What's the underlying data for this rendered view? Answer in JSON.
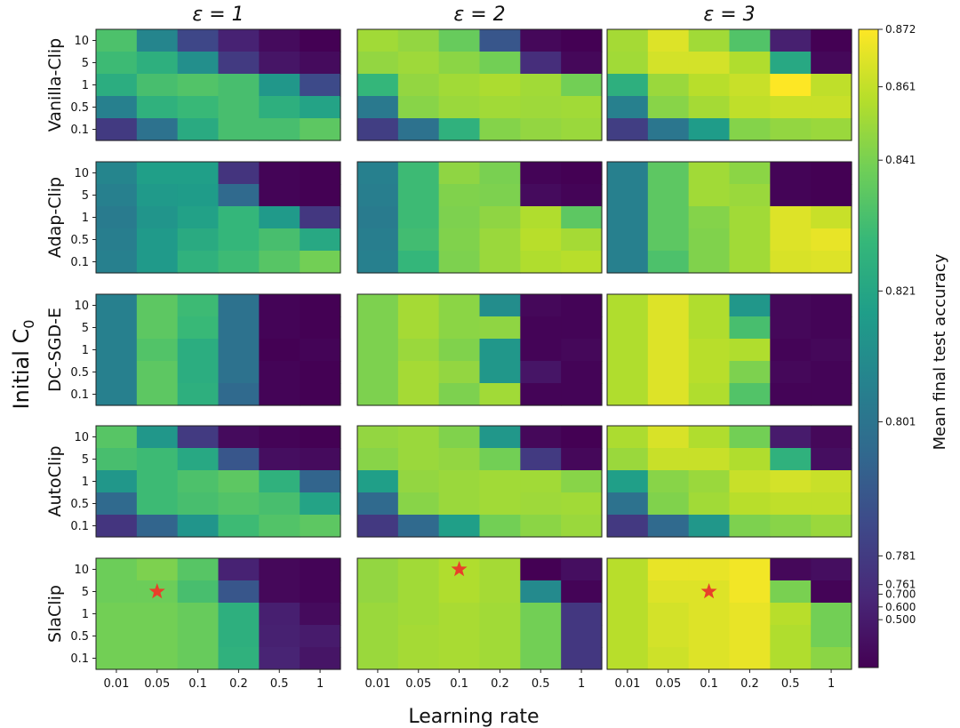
{
  "chart_data": {
    "type": "heatmap",
    "title": "",
    "xlabel": "Learning rate",
    "ylabel": "Initial C",
    "ylabel_subscript": "0",
    "colorbar_label": "Mean final test accuracy",
    "colormap": "viridis",
    "colorbar_ticks": [
      "0.872",
      "0.861",
      "0.841",
      "0.821",
      "0.801",
      "0.781",
      "0.761",
      "0.700",
      "0.600",
      "0.500"
    ],
    "column_titles": [
      "ε = 1",
      "ε = 2",
      "ε = 3"
    ],
    "row_titles": [
      "Vanilla-Clip",
      "Adap-Clip",
      "DC-SGD-E",
      "AutoClip",
      "SlaClip"
    ],
    "x_categories": [
      "0.01",
      "0.05",
      "0.1",
      "0.2",
      "0.5",
      "1"
    ],
    "y_categories": [
      "10",
      "5",
      "1",
      "0.5",
      "0.1"
    ],
    "best_marker_color": "#e8402a",
    "panels": [
      {
        "method": "Vanilla-Clip",
        "epsilon": 1,
        "values": [
          [
            0.833,
            0.808,
            0.785,
            0.6,
            0.45,
            0.42
          ],
          [
            0.83,
            0.825,
            0.812,
            0.78,
            0.48,
            0.45
          ],
          [
            0.824,
            0.832,
            0.834,
            0.832,
            0.815,
            0.786
          ],
          [
            0.806,
            0.826,
            0.829,
            0.832,
            0.825,
            0.82
          ],
          [
            0.78,
            0.8,
            0.823,
            0.832,
            0.832,
            0.836
          ]
        ]
      },
      {
        "method": "Adap-Clip",
        "epsilon": 1,
        "values": [
          [
            0.808,
            0.818,
            0.818,
            0.77,
            0.43,
            0.42
          ],
          [
            0.806,
            0.816,
            0.817,
            0.797,
            0.43,
            0.42
          ],
          [
            0.804,
            0.814,
            0.819,
            0.828,
            0.816,
            0.775
          ],
          [
            0.805,
            0.816,
            0.823,
            0.828,
            0.832,
            0.822
          ],
          [
            0.806,
            0.816,
            0.826,
            0.83,
            0.835,
            0.84
          ]
        ]
      },
      {
        "method": "DC-SGD-E",
        "epsilon": 1,
        "values": [
          [
            0.806,
            0.836,
            0.83,
            0.8,
            0.43,
            0.42
          ],
          [
            0.806,
            0.836,
            0.829,
            0.8,
            0.43,
            0.42
          ],
          [
            0.806,
            0.834,
            0.824,
            0.8,
            0.42,
            0.43
          ],
          [
            0.806,
            0.836,
            0.824,
            0.8,
            0.43,
            0.42
          ],
          [
            0.806,
            0.836,
            0.825,
            0.797,
            0.43,
            0.42
          ]
        ]
      },
      {
        "method": "AutoClip",
        "epsilon": 1,
        "values": [
          [
            0.835,
            0.815,
            0.78,
            0.45,
            0.43,
            0.42
          ],
          [
            0.832,
            0.83,
            0.822,
            0.79,
            0.46,
            0.45
          ],
          [
            0.815,
            0.83,
            0.833,
            0.836,
            0.826,
            0.795
          ],
          [
            0.797,
            0.83,
            0.832,
            0.834,
            0.832,
            0.82
          ],
          [
            0.772,
            0.795,
            0.814,
            0.83,
            0.834,
            0.836
          ]
        ]
      },
      {
        "method": "SlaClip",
        "epsilon": 1,
        "best": [
          1,
          1
        ],
        "values": [
          [
            0.839,
            0.842,
            0.835,
            0.6,
            0.44,
            0.43
          ],
          [
            0.839,
            0.839,
            0.832,
            0.79,
            0.44,
            0.43
          ],
          [
            0.84,
            0.84,
            0.838,
            0.825,
            0.55,
            0.45
          ],
          [
            0.84,
            0.84,
            0.838,
            0.825,
            0.58,
            0.5
          ],
          [
            0.84,
            0.84,
            0.838,
            0.826,
            0.62,
            0.48
          ]
        ]
      },
      {
        "method": "Vanilla-Clip",
        "epsilon": 2,
        "values": [
          [
            0.852,
            0.848,
            0.838,
            0.79,
            0.44,
            0.42
          ],
          [
            0.848,
            0.851,
            0.846,
            0.84,
            0.76,
            0.44
          ],
          [
            0.828,
            0.848,
            0.852,
            0.855,
            0.852,
            0.84
          ],
          [
            0.803,
            0.845,
            0.85,
            0.852,
            0.851,
            0.852
          ],
          [
            0.782,
            0.8,
            0.826,
            0.844,
            0.848,
            0.85
          ]
        ]
      },
      {
        "method": "Adap-Clip",
        "epsilon": 2,
        "values": [
          [
            0.806,
            0.83,
            0.847,
            0.841,
            0.43,
            0.42
          ],
          [
            0.805,
            0.83,
            0.843,
            0.842,
            0.45,
            0.43
          ],
          [
            0.804,
            0.83,
            0.842,
            0.847,
            0.856,
            0.836
          ],
          [
            0.805,
            0.831,
            0.843,
            0.85,
            0.858,
            0.853
          ],
          [
            0.806,
            0.828,
            0.842,
            0.85,
            0.856,
            0.858
          ]
        ]
      },
      {
        "method": "DC-SGD-E",
        "epsilon": 2,
        "values": [
          [
            0.842,
            0.853,
            0.846,
            0.811,
            0.44,
            0.43
          ],
          [
            0.842,
            0.853,
            0.846,
            0.847,
            0.43,
            0.43
          ],
          [
            0.842,
            0.85,
            0.843,
            0.815,
            0.43,
            0.44
          ],
          [
            0.842,
            0.853,
            0.848,
            0.815,
            0.48,
            0.43
          ],
          [
            0.842,
            0.853,
            0.842,
            0.852,
            0.43,
            0.43
          ]
        ]
      },
      {
        "method": "AutoClip",
        "epsilon": 2,
        "values": [
          [
            0.848,
            0.85,
            0.843,
            0.815,
            0.44,
            0.42
          ],
          [
            0.845,
            0.85,
            0.848,
            0.84,
            0.78,
            0.44
          ],
          [
            0.818,
            0.848,
            0.85,
            0.852,
            0.852,
            0.845
          ],
          [
            0.797,
            0.845,
            0.85,
            0.852,
            0.851,
            0.852
          ],
          [
            0.778,
            0.797,
            0.818,
            0.84,
            0.846,
            0.85
          ]
        ]
      },
      {
        "method": "SlaClip",
        "epsilon": 2,
        "best": [
          0,
          2
        ],
        "values": [
          [
            0.848,
            0.852,
            0.856,
            0.853,
            0.42,
            0.46
          ],
          [
            0.848,
            0.852,
            0.856,
            0.853,
            0.81,
            0.43
          ],
          [
            0.85,
            0.852,
            0.854,
            0.852,
            0.84,
            0.775
          ],
          [
            0.85,
            0.853,
            0.854,
            0.852,
            0.84,
            0.775
          ],
          [
            0.85,
            0.853,
            0.854,
            0.852,
            0.84,
            0.775
          ]
        ]
      },
      {
        "method": "Vanilla-Clip",
        "epsilon": 3,
        "values": [
          [
            0.853,
            0.866,
            0.852,
            0.834,
            0.56,
            0.42
          ],
          [
            0.852,
            0.864,
            0.864,
            0.856,
            0.822,
            0.44
          ],
          [
            0.825,
            0.85,
            0.858,
            0.862,
            0.872,
            0.86
          ],
          [
            0.806,
            0.845,
            0.853,
            0.86,
            0.862,
            0.862
          ],
          [
            0.782,
            0.802,
            0.817,
            0.844,
            0.848,
            0.85
          ]
        ]
      },
      {
        "method": "Adap-Clip",
        "epsilon": 3,
        "values": [
          [
            0.806,
            0.836,
            0.852,
            0.846,
            0.43,
            0.42
          ],
          [
            0.806,
            0.836,
            0.852,
            0.85,
            0.43,
            0.42
          ],
          [
            0.806,
            0.836,
            0.844,
            0.852,
            0.866,
            0.862
          ],
          [
            0.806,
            0.836,
            0.843,
            0.852,
            0.866,
            0.868
          ],
          [
            0.806,
            0.833,
            0.843,
            0.852,
            0.865,
            0.866
          ]
        ]
      },
      {
        "method": "DC-SGD-E",
        "epsilon": 3,
        "values": [
          [
            0.856,
            0.866,
            0.856,
            0.815,
            0.44,
            0.43
          ],
          [
            0.856,
            0.866,
            0.856,
            0.832,
            0.44,
            0.43
          ],
          [
            0.856,
            0.866,
            0.858,
            0.856,
            0.43,
            0.44
          ],
          [
            0.856,
            0.866,
            0.858,
            0.842,
            0.44,
            0.43
          ],
          [
            0.856,
            0.866,
            0.856,
            0.834,
            0.43,
            0.43
          ]
        ]
      },
      {
        "method": "AutoClip",
        "epsilon": 3,
        "values": [
          [
            0.855,
            0.865,
            0.856,
            0.84,
            0.5,
            0.44
          ],
          [
            0.85,
            0.862,
            0.862,
            0.856,
            0.826,
            0.46
          ],
          [
            0.818,
            0.845,
            0.85,
            0.862,
            0.864,
            0.862
          ],
          [
            0.8,
            0.843,
            0.852,
            0.858,
            0.86,
            0.86
          ],
          [
            0.778,
            0.797,
            0.815,
            0.842,
            0.845,
            0.85
          ]
        ]
      },
      {
        "method": "SlaClip",
        "epsilon": 3,
        "best": [
          1,
          2
        ],
        "values": [
          [
            0.858,
            0.868,
            0.868,
            0.87,
            0.44,
            0.46
          ],
          [
            0.858,
            0.866,
            0.866,
            0.87,
            0.841,
            0.43
          ],
          [
            0.858,
            0.864,
            0.866,
            0.868,
            0.858,
            0.84
          ],
          [
            0.858,
            0.864,
            0.866,
            0.868,
            0.856,
            0.84
          ],
          [
            0.858,
            0.863,
            0.866,
            0.868,
            0.856,
            0.846
          ]
        ]
      }
    ]
  }
}
